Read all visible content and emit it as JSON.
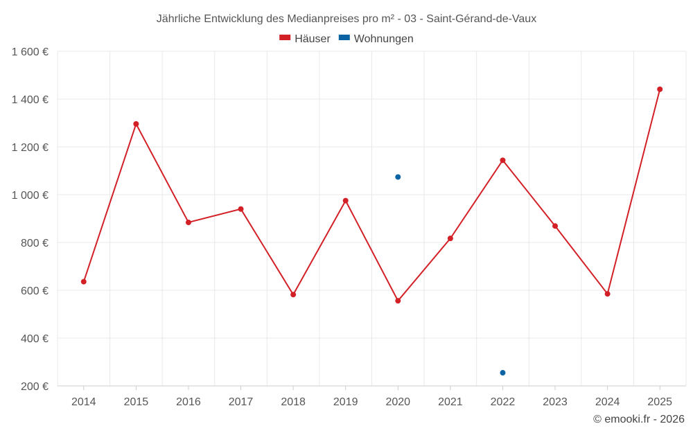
{
  "chart_data": {
    "type": "line",
    "title": "Jährliche Entwicklung des Medianpreises pro m² - 03 - Saint-Gérand-de-Vaux",
    "categories": [
      "2014",
      "2015",
      "2016",
      "2017",
      "2018",
      "2019",
      "2020",
      "2021",
      "2022",
      "2023",
      "2024",
      "2025"
    ],
    "series": [
      {
        "name": "Häuser",
        "color": "#d32027",
        "values": [
          636,
          1296,
          884,
          940,
          582,
          975,
          556,
          817,
          1144,
          869,
          585,
          1441
        ]
      },
      {
        "name": "Wohnungen",
        "color": "#0b63a3",
        "values": [
          null,
          null,
          null,
          null,
          null,
          null,
          1074,
          null,
          255,
          null,
          null,
          null
        ]
      }
    ],
    "ylim": [
      200,
      1600
    ],
    "yticks": [
      200,
      400,
      600,
      800,
      1000,
      1200,
      1400,
      1600
    ],
    "ytick_labels": [
      "200 €",
      "400 €",
      "600 €",
      "800 €",
      "1 000 €",
      "1 200 €",
      "1 400 €",
      "1 600 €"
    ],
    "grid": true,
    "legend_position": "top-center"
  },
  "credit": "© emooki.fr - 2026"
}
